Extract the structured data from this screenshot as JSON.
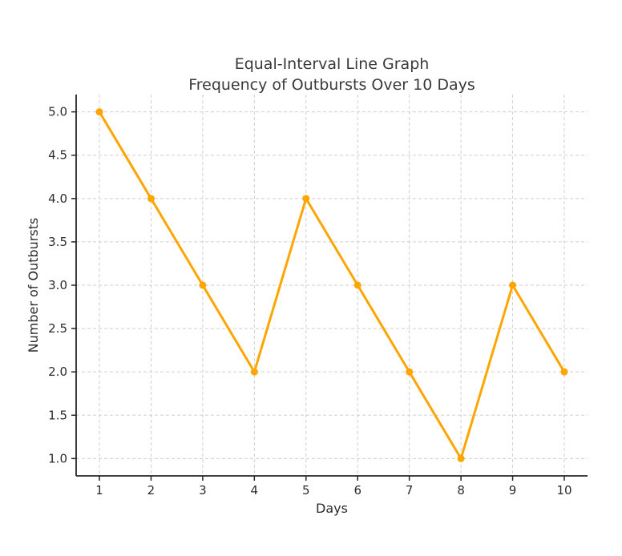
{
  "chart_data": {
    "type": "line",
    "title": "Equal-Interval Line Graph",
    "subtitle": "Frequency of Outbursts Over 10 Days",
    "xlabel": "Days",
    "ylabel": "Number of Outbursts",
    "x": [
      1,
      2,
      3,
      4,
      5,
      6,
      7,
      8,
      9,
      10
    ],
    "values": [
      5,
      4,
      3,
      2,
      4,
      3,
      2,
      1,
      3,
      2
    ],
    "xtick_labels": [
      "1",
      "2",
      "3",
      "4",
      "5",
      "6",
      "7",
      "8",
      "9",
      "10"
    ],
    "ytick_labels": [
      "1.0",
      "1.5",
      "2.0",
      "2.5",
      "3.0",
      "3.5",
      "4.0",
      "4.5",
      "5.0"
    ],
    "xlim": [
      0.55,
      10.45
    ],
    "ylim": [
      0.8,
      5.2
    ],
    "grid": true,
    "grid_style": "dashed",
    "legend": "none",
    "line_color": "#FFA500",
    "marker": "circle",
    "marker_color": "#FFA500",
    "grid_color": "#cfcfcf",
    "axis_color": "#262626",
    "text_color": "#2b2b2b",
    "title_color": "#3a3a3a",
    "background_color": "#ffffff"
  }
}
